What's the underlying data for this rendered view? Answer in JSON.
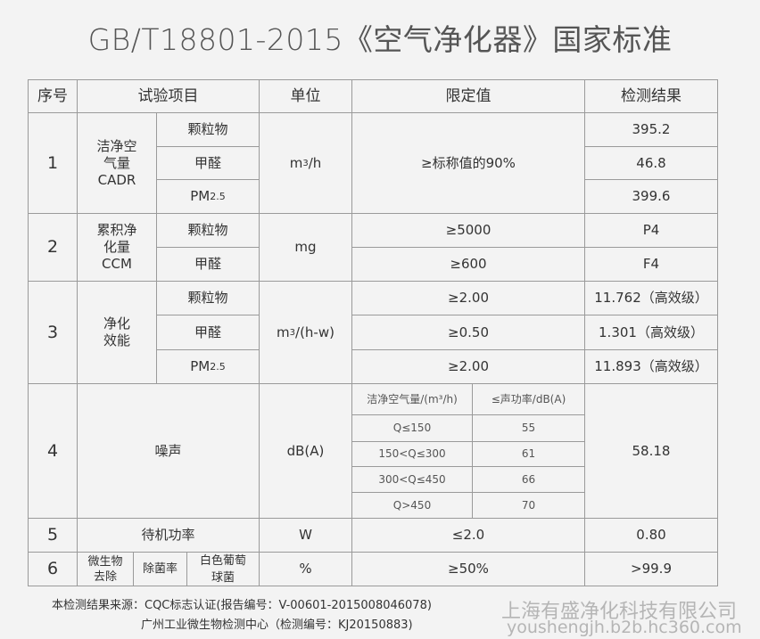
{
  "title": "GB/T18801-2015《空气净化器》国家标准",
  "headers": {
    "no": "序号",
    "item": "试验项目",
    "unit": "单位",
    "limit": "限定值",
    "result": "检测结果"
  },
  "rows": [
    {
      "no": "1",
      "item": "洁净空气量CADR",
      "item_lines": [
        "洁净空",
        "气量",
        "CADR"
      ],
      "unit": "m³/h",
      "limit": "≥标称值的90%",
      "subs": [
        {
          "name": "颗粒物",
          "result": "395.2"
        },
        {
          "name": "甲醛",
          "result": "46.8"
        },
        {
          "name": "PM",
          "name_sub": "2.5",
          "result": "399.6"
        }
      ]
    },
    {
      "no": "2",
      "item_lines": [
        "累积净",
        "化量",
        "CCM"
      ],
      "unit": "mg",
      "subs": [
        {
          "name": "颗粒物",
          "limit": "≥5000",
          "result": "P4"
        },
        {
          "name": "甲醛",
          "limit": "≥600",
          "result": "F4"
        }
      ]
    },
    {
      "no": "3",
      "item_lines": [
        "净化",
        "效能"
      ],
      "unit": "m³/(h-w)",
      "subs": [
        {
          "name": "颗粒物",
          "limit": "≥2.00",
          "result": "11.762（高效级）"
        },
        {
          "name": "甲醛",
          "limit": "≥0.50",
          "result": "1.301（高效级）"
        },
        {
          "name": "PM",
          "name_sub": "2.5",
          "limit": "≥2.00",
          "result": "11.893（高效级）"
        }
      ]
    },
    {
      "no": "4",
      "item": "噪声",
      "unit": "dB(A)",
      "result": "58.18",
      "noise_headers": [
        "洁净空气量/(m³/h)",
        "≤声功率/dB(A)"
      ],
      "noise_rows": [
        [
          "Q≤150",
          "55"
        ],
        [
          "150<Q≤300",
          "61"
        ],
        [
          "300<Q≤450",
          "66"
        ],
        [
          "Q>450",
          "70"
        ]
      ]
    },
    {
      "no": "5",
      "item": "待机功率",
      "unit": "W",
      "limit": "≤2.0",
      "result": "0.80"
    },
    {
      "no": "6",
      "item_a": "微生物去除",
      "item_a_lines": [
        "微生物",
        "去除"
      ],
      "item_b": "除菌率",
      "item_c_lines": [
        "白色葡萄",
        "球菌"
      ],
      "unit": "%",
      "limit": "≥50%",
      "result": ">99.9"
    }
  ],
  "footer": {
    "line1": "本检测结果来源：CQC标志认证(报告编号：V-00601-2015008046078)",
    "line2": "广州工业微生物检测中心（检测编号：KJ20150883)"
  },
  "watermark": {
    "company": "上海有盛净化科技有限公司",
    "url": "youshengjh.b2b.hc360.com"
  }
}
